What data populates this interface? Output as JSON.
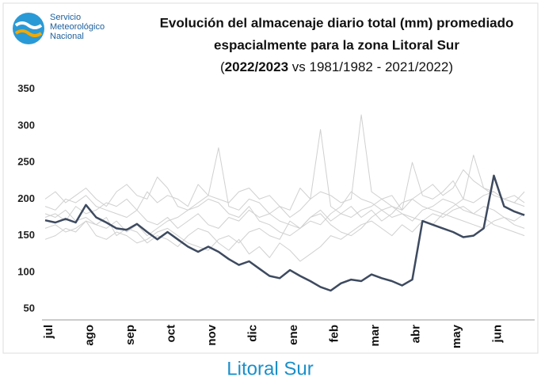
{
  "chart_data": {
    "type": "line",
    "logo_lines": [
      "Servicio",
      "Meteorológico",
      "Nacional"
    ],
    "title_lines": [
      "Evolución del almacenaje diario total (mm) promediado",
      "espacialmente para la zona Litoral Sur"
    ],
    "subtitle_parts": [
      "(",
      "2022/2023",
      " vs 1981/1982 - 2021/2022)"
    ],
    "caption": "Litoral Sur",
    "categories": [
      "jul",
      null,
      null,
      null,
      "ago",
      null,
      null,
      null,
      "sep",
      null,
      null,
      null,
      "oct",
      null,
      null,
      null,
      "nov",
      null,
      null,
      null,
      "dic",
      null,
      null,
      null,
      "ene",
      null,
      null,
      null,
      "feb",
      null,
      null,
      null,
      "mar",
      null,
      null,
      null,
      "abr",
      null,
      null,
      null,
      "may",
      null,
      null,
      null,
      "jun",
      null,
      null,
      null
    ],
    "ylim": [
      35,
      355
    ],
    "yticks": [
      50,
      100,
      150,
      200,
      250,
      300,
      350
    ],
    "grid": false,
    "series": [
      {
        "color": "#d0d0d0",
        "values": [
          190,
          185,
          200,
          195,
          205,
          190,
          185,
          180,
          175,
          185,
          170,
          165,
          175,
          160,
          170,
          180,
          165,
          160,
          175,
          170,
          185,
          175,
          180,
          170,
          165,
          160,
          175,
          185,
          170,
          180,
          190,
          175,
          185,
          170,
          180,
          195,
          200,
          190,
          185,
          180,
          190,
          200,
          195,
          205,
          210,
          200,
          195,
          190
        ]
      },
      {
        "color": "#d0d0d0",
        "values": [
          180,
          175,
          185,
          170,
          175,
          165,
          160,
          170,
          155,
          165,
          150,
          160,
          170,
          175,
          185,
          190,
          200,
          195,
          180,
          175,
          190,
          170,
          165,
          155,
          150,
          160,
          170,
          165,
          180,
          190,
          210,
          200,
          195,
          185,
          175,
          180,
          170,
          185,
          190,
          200,
          195,
          185,
          180,
          190,
          185,
          175,
          170,
          180
        ]
      },
      {
        "color": "#d0d0d0",
        "values": [
          200,
          210,
          195,
          205,
          215,
          200,
          190,
          210,
          220,
          205,
          200,
          230,
          215,
          190,
          185,
          195,
          205,
          270,
          190,
          185,
          200,
          195,
          180,
          190,
          175,
          185,
          200,
          295,
          190,
          180,
          175,
          185,
          190,
          200,
          205,
          185,
          200,
          210,
          220,
          205,
          215,
          240,
          225,
          215,
          210,
          200,
          205,
          195
        ]
      },
      {
        "color": "#d0d0d0",
        "values": [
          145,
          150,
          160,
          155,
          170,
          165,
          175,
          150,
          160,
          155,
          140,
          150,
          145,
          135,
          150,
          160,
          155,
          140,
          130,
          145,
          125,
          135,
          120,
          140,
          130,
          115,
          125,
          135,
          150,
          145,
          155,
          165,
          170,
          160,
          150,
          165,
          155,
          170,
          180,
          175,
          185,
          190,
          180,
          175,
          165,
          160,
          155,
          150
        ]
      },
      {
        "color": "#d0d0d0",
        "values": [
          175,
          180,
          170,
          190,
          180,
          185,
          195,
          190,
          200,
          185,
          210,
          195,
          205,
          200,
          190,
          220,
          205,
          200,
          195,
          210,
          215,
          200,
          205,
          190,
          185,
          215,
          200,
          210,
          205,
          195,
          200,
          315,
          210,
          200,
          190,
          185,
          250,
          205,
          200,
          210,
          225,
          200,
          260,
          215,
          205,
          200,
          195,
          210
        ]
      },
      {
        "color": "#d0d0d0",
        "values": [
          160,
          165,
          155,
          160,
          170,
          150,
          145,
          155,
          150,
          140,
          145,
          155,
          160,
          150,
          140,
          135,
          130,
          145,
          150,
          140,
          155,
          160,
          150,
          145,
          170,
          160,
          175,
          180,
          165,
          155,
          150,
          160,
          175,
          185,
          190,
          180,
          175,
          170,
          165,
          180,
          175,
          170,
          165,
          160,
          170,
          175,
          165,
          160
        ]
      },
      {
        "name": "2022/2023",
        "color": "#3d4a5f",
        "values": [
          171,
          168,
          173,
          168,
          192,
          175,
          168,
          160,
          158,
          166,
          155,
          145,
          155,
          145,
          135,
          128,
          135,
          128,
          118,
          110,
          115,
          105,
          95,
          92,
          103,
          95,
          88,
          80,
          75,
          85,
          90,
          88,
          97,
          92,
          88,
          82,
          90,
          170,
          165,
          160,
          155,
          148,
          150,
          160,
          232,
          190,
          183,
          178
        ]
      }
    ]
  }
}
